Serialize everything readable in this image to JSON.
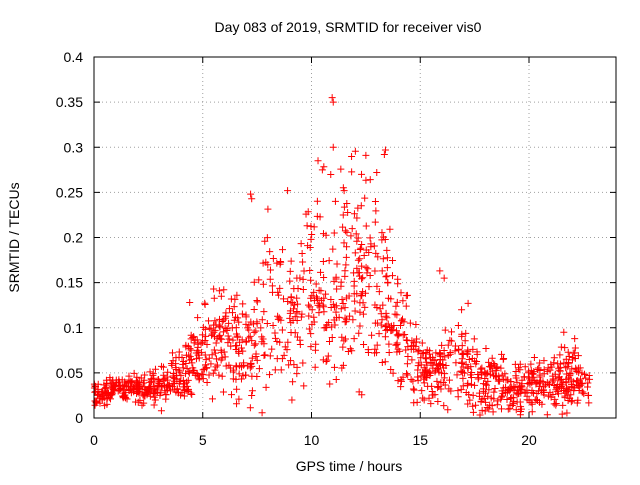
{
  "chart_data": {
    "type": "scatter",
    "title": "Day 083 of 2019, SRMTID for receiver vis0",
    "xlabel": "GPS time / hours",
    "ylabel": "SRMTID / TECUs",
    "xlim": [
      0,
      24
    ],
    "ylim": [
      0,
      0.4
    ],
    "x_ticks": [
      0,
      5,
      10,
      15,
      20
    ],
    "x_tick_labels": [
      "0",
      "5",
      "10",
      "15",
      "20"
    ],
    "y_ticks": [
      0,
      0.05,
      0.1,
      0.15,
      0.2,
      0.25,
      0.3,
      0.35,
      0.4
    ],
    "y_tick_labels": [
      "0",
      "0.05",
      "0.1",
      "0.15",
      "0.2",
      "0.25",
      "0.3",
      "0.35",
      "0.4"
    ],
    "grid": true,
    "marker": "plus",
    "series": [
      {
        "name": "SRMTID",
        "color": "#ff0000",
        "envelope": {
          "hours": [
            0,
            1,
            2,
            3,
            4,
            5,
            6,
            7,
            8,
            9,
            10,
            11,
            12,
            13,
            14,
            15,
            16,
            17,
            18,
            19,
            20,
            21,
            22,
            22.8
          ],
          "center": [
            0.025,
            0.032,
            0.032,
            0.035,
            0.048,
            0.075,
            0.085,
            0.07,
            0.12,
            0.1,
            0.14,
            0.13,
            0.16,
            0.16,
            0.09,
            0.055,
            0.05,
            0.06,
            0.04,
            0.04,
            0.035,
            0.04,
            0.045,
            0.035
          ],
          "spread": [
            0.01,
            0.012,
            0.012,
            0.015,
            0.025,
            0.035,
            0.04,
            0.05,
            0.07,
            0.06,
            0.08,
            0.09,
            0.08,
            0.08,
            0.05,
            0.03,
            0.03,
            0.04,
            0.025,
            0.025,
            0.02,
            0.025,
            0.03,
            0.015
          ]
        },
        "notable_points": [
          {
            "x": 10.95,
            "y": 0.355
          },
          {
            "x": 11.0,
            "y": 0.35
          },
          {
            "x": 13.4,
            "y": 0.297
          },
          {
            "x": 13.35,
            "y": 0.292
          },
          {
            "x": 12.5,
            "y": 0.291
          },
          {
            "x": 11.0,
            "y": 0.3
          },
          {
            "x": 10.3,
            "y": 0.285
          },
          {
            "x": 10.5,
            "y": 0.275
          },
          {
            "x": 7.2,
            "y": 0.248
          },
          {
            "x": 7.25,
            "y": 0.243
          },
          {
            "x": 8.9,
            "y": 0.252
          },
          {
            "x": 11.5,
            "y": 0.252
          },
          {
            "x": 11.1,
            "y": 0.24
          },
          {
            "x": 12.3,
            "y": 0.27
          },
          {
            "x": 13.0,
            "y": 0.272
          },
          {
            "x": 15.9,
            "y": 0.163
          },
          {
            "x": 16.1,
            "y": 0.155
          },
          {
            "x": 5.5,
            "y": 0.143
          },
          {
            "x": 3.1,
            "y": 0.008
          },
          {
            "x": 9.1,
            "y": 0.02
          },
          {
            "x": 4.4,
            "y": 0.128
          },
          {
            "x": 17.2,
            "y": 0.127
          },
          {
            "x": 16.9,
            "y": 0.12
          },
          {
            "x": 22.1,
            "y": 0.088
          },
          {
            "x": 21.6,
            "y": 0.095
          }
        ]
      }
    ]
  }
}
